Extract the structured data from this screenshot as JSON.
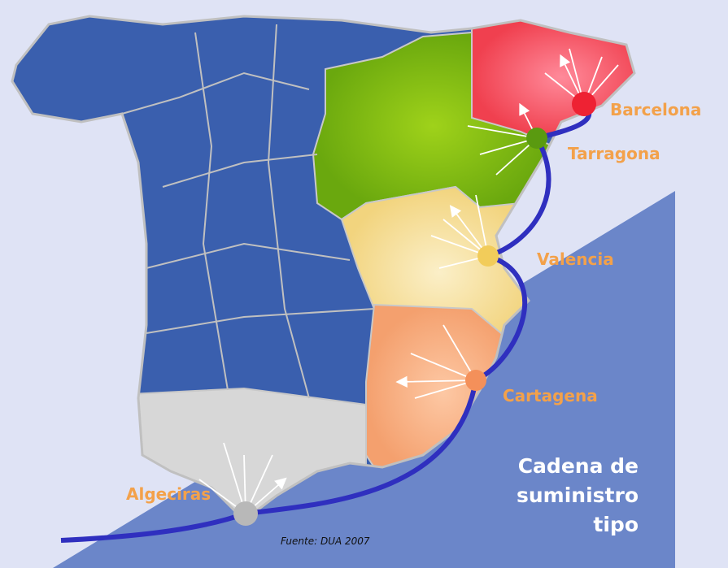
{
  "ports": [
    {
      "label": "Barcelona"
    },
    {
      "label": "Tarragona"
    },
    {
      "label": "Valencia"
    },
    {
      "label": "Cartagena"
    },
    {
      "label": "Algeciras"
    }
  ],
  "caption": {
    "lines": [
      "Cadena de",
      "suministro",
      "tipo"
    ]
  },
  "source": "Fuente: DUA 2007"
}
